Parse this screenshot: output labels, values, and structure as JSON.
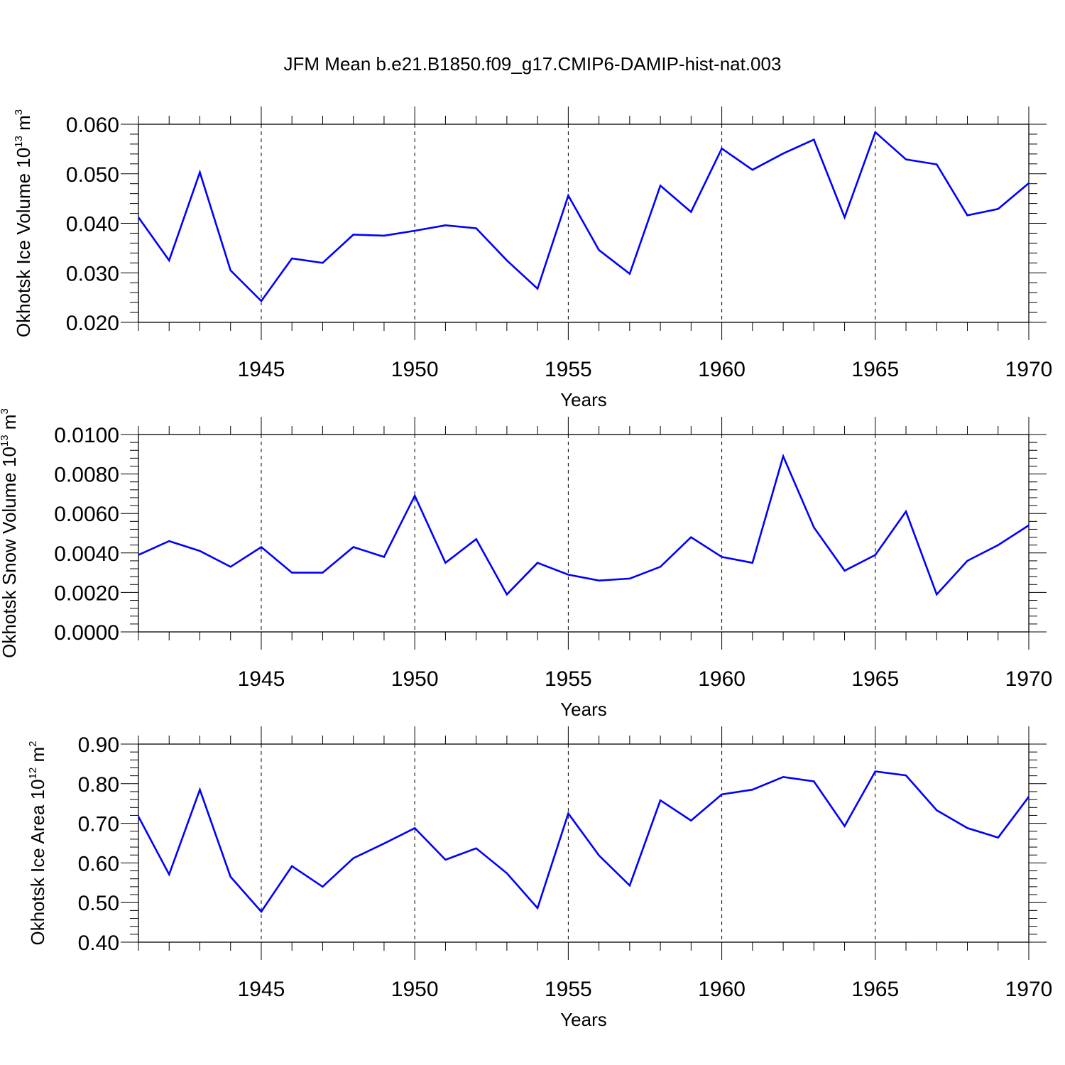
{
  "title": "JFM Mean b.e21.B1850.f09_g17.CMIP6-DAMIP-hist-nat.003",
  "colors": {
    "line": "#0000ff",
    "axis": "#000000",
    "grid": "#000000"
  },
  "chart_data": [
    {
      "type": "line",
      "ylabel": {
        "text": "Okhotsk Ice Volume 10",
        "sup": "13",
        "unit": " m",
        "unit_sup": "3"
      },
      "xlabel": "Years",
      "xlim": [
        1941,
        1970
      ],
      "ylim": [
        0.02,
        0.06
      ],
      "yticks": [
        0.02,
        0.03,
        0.04,
        0.05,
        0.06
      ],
      "ytick_labels": [
        "0.020",
        "0.030",
        "0.040",
        "0.050",
        "0.060"
      ],
      "xticks": [
        1945,
        1950,
        1955,
        1960,
        1965,
        1970
      ],
      "xtick_labels": [
        "1945",
        "1950",
        "1955",
        "1960",
        "1965",
        "1970"
      ],
      "grid": "vertical dashed at labeled years",
      "x": [
        1941,
        1942,
        1943,
        1944,
        1945,
        1946,
        1947,
        1948,
        1949,
        1950,
        1951,
        1952,
        1953,
        1954,
        1955,
        1956,
        1957,
        1958,
        1959,
        1960,
        1961,
        1962,
        1963,
        1964,
        1965,
        1966,
        1967,
        1968,
        1969,
        1970
      ],
      "series": [
        {
          "values": [
            0.0412,
            0.0325,
            0.0503,
            0.0305,
            0.0243,
            0.0329,
            0.032,
            0.0377,
            0.0375,
            0.0385,
            0.0396,
            0.039,
            0.0325,
            0.0268,
            0.0456,
            0.0346,
            0.0298,
            0.0476,
            0.0423,
            0.0551,
            0.0508,
            0.0541,
            0.0569,
            0.0412,
            0.0584,
            0.0529,
            0.0519,
            0.0416,
            0.0429,
            0.0481
          ]
        }
      ]
    },
    {
      "type": "line",
      "ylabel": {
        "text": "Okhotsk Snow Volume 10",
        "sup": "13",
        "unit": " m",
        "unit_sup": "3"
      },
      "xlabel": "Years",
      "xlim": [
        1941,
        1970
      ],
      "ylim": [
        0.0,
        0.01
      ],
      "yticks": [
        0.0,
        0.002,
        0.004,
        0.006,
        0.008,
        0.01
      ],
      "ytick_labels": [
        "0.0000",
        "0.0020",
        "0.0040",
        "0.0060",
        "0.0080",
        "0.0100"
      ],
      "xticks": [
        1945,
        1950,
        1955,
        1960,
        1965,
        1970
      ],
      "xtick_labels": [
        "1945",
        "1950",
        "1955",
        "1960",
        "1965",
        "1970"
      ],
      "grid": "vertical dashed at labeled years",
      "x": [
        1941,
        1942,
        1943,
        1944,
        1945,
        1946,
        1947,
        1948,
        1949,
        1950,
        1951,
        1952,
        1953,
        1954,
        1955,
        1956,
        1957,
        1958,
        1959,
        1960,
        1961,
        1962,
        1963,
        1964,
        1965,
        1966,
        1967,
        1968,
        1969,
        1970
      ],
      "series": [
        {
          "values": [
            0.0039,
            0.0046,
            0.0041,
            0.0033,
            0.0043,
            0.003,
            0.003,
            0.0043,
            0.0038,
            0.0069,
            0.0035,
            0.0047,
            0.0019,
            0.0035,
            0.0029,
            0.0026,
            0.0027,
            0.0033,
            0.0048,
            0.0038,
            0.0035,
            0.0089,
            0.0053,
            0.0031,
            0.0039,
            0.0061,
            0.0019,
            0.0036,
            0.0044,
            0.0054
          ]
        }
      ]
    },
    {
      "type": "line",
      "ylabel": {
        "text": "Okhotsk Ice Area 10",
        "sup": "12",
        "unit": " m",
        "unit_sup": "2"
      },
      "xlabel": "Years",
      "xlim": [
        1941,
        1970
      ],
      "ylim": [
        0.4,
        0.9
      ],
      "yticks": [
        0.4,
        0.5,
        0.6,
        0.7,
        0.8,
        0.9
      ],
      "ytick_labels": [
        "0.40",
        "0.50",
        "0.60",
        "0.70",
        "0.80",
        "0.90"
      ],
      "xticks": [
        1945,
        1950,
        1955,
        1960,
        1965,
        1970
      ],
      "xtick_labels": [
        "1945",
        "1950",
        "1955",
        "1960",
        "1965",
        "1970"
      ],
      "grid": "vertical dashed at labeled years",
      "x": [
        1941,
        1942,
        1943,
        1944,
        1945,
        1946,
        1947,
        1948,
        1949,
        1950,
        1951,
        1952,
        1953,
        1954,
        1955,
        1956,
        1957,
        1958,
        1959,
        1960,
        1961,
        1962,
        1963,
        1964,
        1965,
        1966,
        1967,
        1968,
        1969,
        1970
      ],
      "series": [
        {
          "values": [
            0.717,
            0.571,
            0.785,
            0.565,
            0.477,
            0.592,
            0.54,
            0.612,
            0.649,
            0.688,
            0.608,
            0.637,
            0.574,
            0.486,
            0.725,
            0.619,
            0.543,
            0.758,
            0.707,
            0.773,
            0.785,
            0.817,
            0.806,
            0.693,
            0.831,
            0.821,
            0.733,
            0.688,
            0.664,
            0.767
          ]
        }
      ]
    }
  ]
}
